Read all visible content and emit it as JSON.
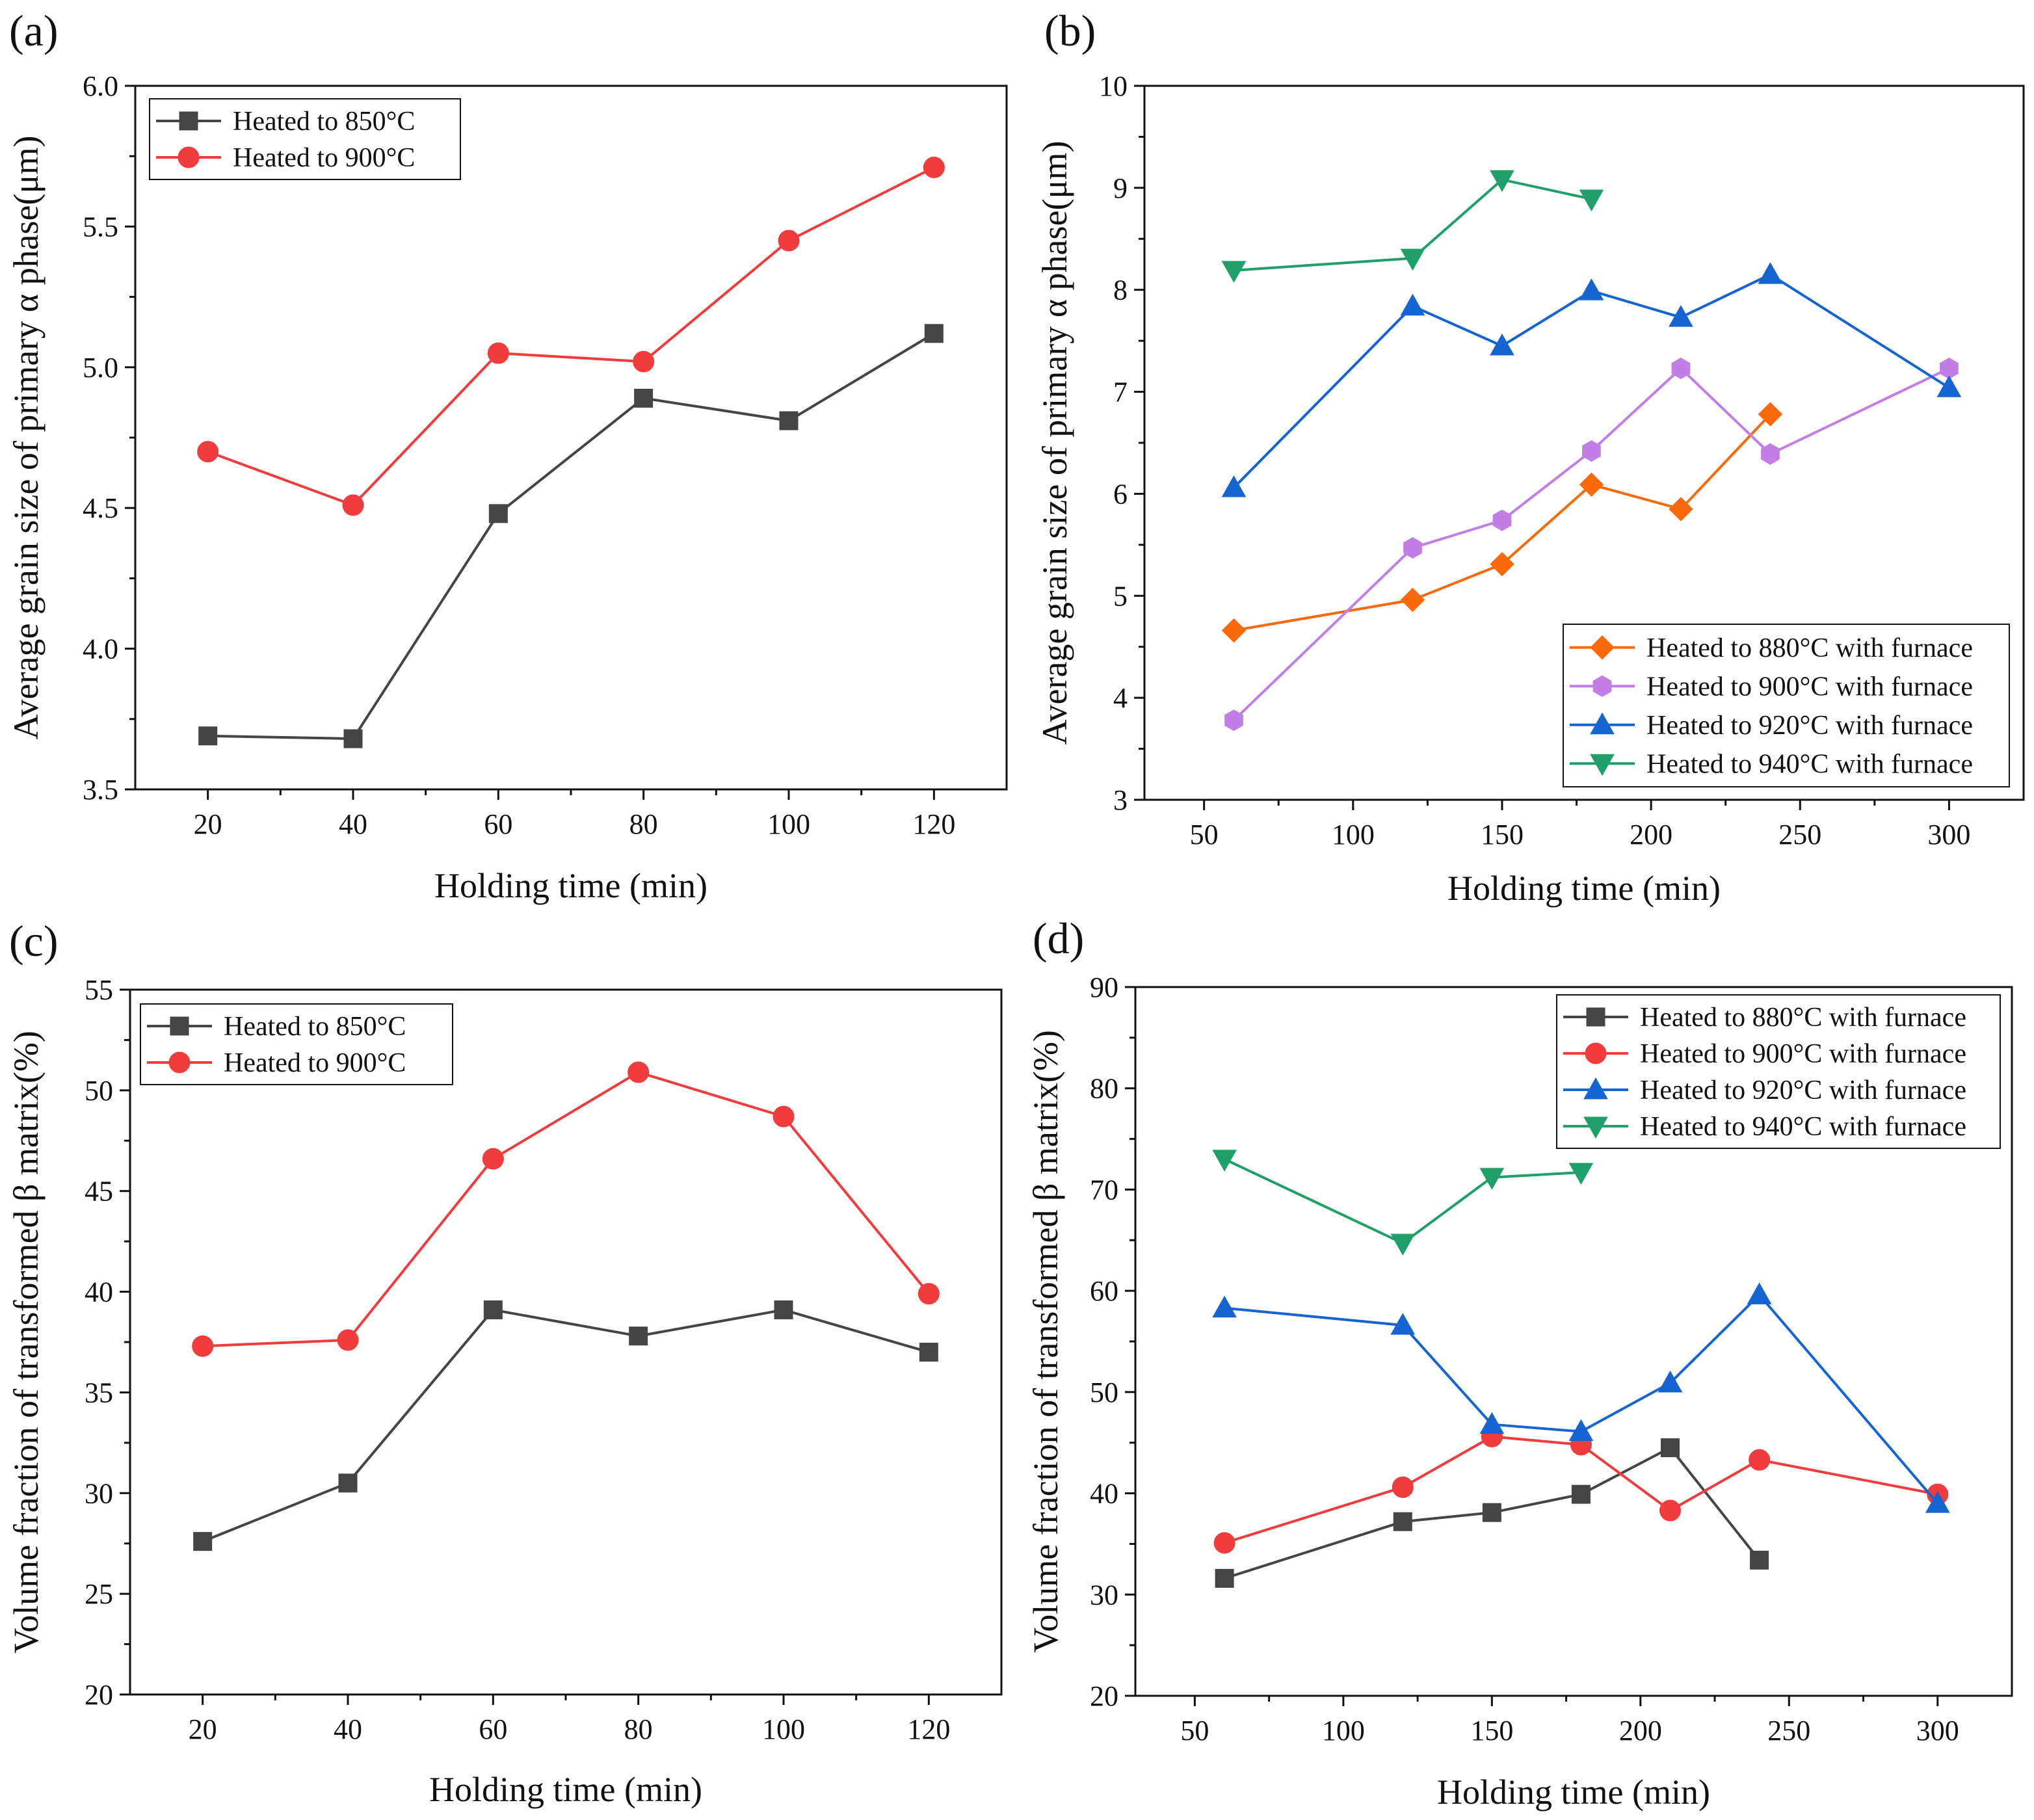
{
  "chart_data": [
    {
      "panel": "(a)",
      "type": "line",
      "xlabel": "Holding time (min)",
      "ylabel": "Average grain size of primary α phase(μm)",
      "xlim": [
        10,
        130
      ],
      "ylim": [
        3.5,
        6.0
      ],
      "xticks": [
        20,
        40,
        60,
        80,
        100,
        120
      ],
      "yticks": [
        3.5,
        4.0,
        4.5,
        5.0,
        5.5,
        6.0
      ],
      "ytick_labels": [
        "3.5",
        "4.0",
        "4.5",
        "5.0",
        "5.5",
        "6.0"
      ],
      "legend_position": "top-left",
      "series": [
        {
          "name": "Heated to 850°C",
          "color": "#454545",
          "marker": "square",
          "x": [
            20,
            40,
            60,
            80,
            100,
            120
          ],
          "values": [
            3.69,
            3.68,
            4.48,
            4.89,
            4.81,
            5.12
          ]
        },
        {
          "name": "Heated to 900°C",
          "color": "#f03c3c",
          "marker": "circle",
          "x": [
            20,
            40,
            60,
            80,
            100,
            120
          ],
          "values": [
            4.7,
            4.51,
            5.05,
            5.02,
            5.45,
            5.71
          ]
        }
      ]
    },
    {
      "panel": "(b)",
      "type": "line",
      "xlabel": "Holding time (min)",
      "ylabel": "Average grain size of primary α phase(μm)",
      "xlim": [
        30,
        325
      ],
      "ylim": [
        3,
        10
      ],
      "xticks": [
        50,
        100,
        150,
        200,
        250,
        300
      ],
      "yticks": [
        3,
        4,
        5,
        6,
        7,
        8,
        9,
        10
      ],
      "ytick_labels": [
        "3",
        "4",
        "5",
        "6",
        "7",
        "8",
        "9",
        "10"
      ],
      "legend_position": "bottom-right",
      "series": [
        {
          "name": "Heated to 880°C with furnace",
          "color": "#fa6a0a",
          "marker": "diamond",
          "x": [
            60,
            120,
            150,
            180,
            210,
            240
          ],
          "values": [
            4.66,
            4.96,
            5.31,
            6.09,
            5.85,
            6.78
          ]
        },
        {
          "name": "Heated to 900°C with furnace",
          "color": "#c27ee6",
          "marker": "hexagon",
          "x": [
            60,
            120,
            150,
            180,
            210,
            240,
            300
          ],
          "values": [
            3.78,
            5.47,
            5.74,
            6.42,
            7.23,
            6.39,
            7.23
          ]
        },
        {
          "name": "Heated to 920°C with furnace",
          "color": "#1464d2",
          "marker": "triangle-up",
          "x": [
            60,
            120,
            150,
            180,
            210,
            240,
            300
          ],
          "values": [
            6.06,
            7.84,
            7.45,
            7.99,
            7.73,
            8.15,
            7.04
          ]
        },
        {
          "name": "Heated to 940°C with furnace",
          "color": "#1ea068",
          "marker": "triangle-down",
          "x": [
            60,
            120,
            150,
            180
          ],
          "values": [
            8.19,
            8.31,
            9.08,
            8.89
          ]
        }
      ]
    },
    {
      "panel": "(c)",
      "type": "line",
      "xlabel": "Holding time (min)",
      "ylabel": "Volume fraction of transformed β matrix(%)",
      "xlim": [
        10,
        130
      ],
      "ylim": [
        20,
        55
      ],
      "xticks": [
        20,
        40,
        60,
        80,
        100,
        120
      ],
      "yticks": [
        20,
        25,
        30,
        35,
        40,
        45,
        50,
        55
      ],
      "ytick_labels": [
        "20",
        "25",
        "30",
        "35",
        "40",
        "45",
        "50",
        "55"
      ],
      "legend_position": "top-left",
      "series": [
        {
          "name": "Heated to 850°C",
          "color": "#454545",
          "marker": "square",
          "x": [
            20,
            40,
            60,
            80,
            100,
            120
          ],
          "values": [
            27.6,
            30.5,
            39.1,
            37.8,
            39.1,
            37.0
          ]
        },
        {
          "name": "Heated to 900°C",
          "color": "#f03c3c",
          "marker": "circle",
          "x": [
            20,
            40,
            60,
            80,
            100,
            120
          ],
          "values": [
            37.3,
            37.6,
            46.6,
            50.9,
            48.7,
            39.9
          ]
        }
      ]
    },
    {
      "panel": "(d)",
      "type": "line",
      "xlabel": "Holding time (min)",
      "ylabel": "Volume fraction of transformed β matrix(%)",
      "xlim": [
        30,
        325
      ],
      "ylim": [
        20,
        90
      ],
      "xticks": [
        50,
        100,
        150,
        200,
        250,
        300
      ],
      "yticks": [
        20,
        30,
        40,
        50,
        60,
        70,
        80,
        90
      ],
      "ytick_labels": [
        "20",
        "30",
        "40",
        "50",
        "60",
        "70",
        "80",
        "90"
      ],
      "legend_position": "top-right",
      "series": [
        {
          "name": "Heated to 880°C with furnace",
          "color": "#454545",
          "marker": "square",
          "x": [
            60,
            120,
            150,
            180,
            210,
            240
          ],
          "values": [
            31.6,
            37.2,
            38.1,
            39.9,
            44.5,
            33.4
          ]
        },
        {
          "name": "Heated to 900°C with furnace",
          "color": "#f03c3c",
          "marker": "circle",
          "x": [
            60,
            120,
            150,
            180,
            210,
            240,
            300
          ],
          "values": [
            35.1,
            40.6,
            45.6,
            44.8,
            38.3,
            43.3,
            39.9
          ]
        },
        {
          "name": "Heated to 920°C with furnace",
          "color": "#1464d2",
          "marker": "triangle-up",
          "x": [
            60,
            120,
            150,
            180,
            210,
            240,
            300
          ],
          "values": [
            58.3,
            56.6,
            46.8,
            46.1,
            50.9,
            59.6,
            39.0
          ]
        },
        {
          "name": "Heated to 940°C with furnace",
          "color": "#1ea068",
          "marker": "triangle-down",
          "x": [
            60,
            120,
            150,
            180
          ],
          "values": [
            73.0,
            64.7,
            71.2,
            71.7
          ]
        }
      ]
    }
  ]
}
